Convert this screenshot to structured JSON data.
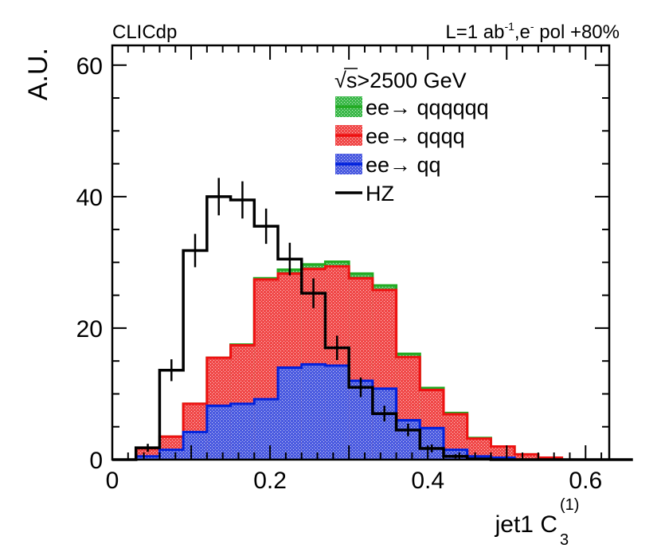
{
  "header": {
    "left": "CLICdp",
    "right_prefix": "L=1 ab",
    "right_sup": "-1",
    "right_mid": ",e",
    "right_sup2": "-",
    "right_suffix": " pol +80%"
  },
  "legend": {
    "title_root": "√",
    "title_text": "s>2500 GeV",
    "placement": "top-right"
  },
  "chart_data": {
    "type": "histogram",
    "stacked": true,
    "xlabel_main": "jet1 C",
    "xlabel_sub": "3",
    "xlabel_sup": "(1)",
    "ylabel": "A.U.",
    "xlim": [
      0,
      0.63
    ],
    "ylim": [
      0,
      63
    ],
    "x_ticks": [
      "0",
      "0.2",
      "0.4",
      "0.6"
    ],
    "x_tick_values": [
      0,
      0.2,
      0.4,
      0.6
    ],
    "y_ticks": [
      "0",
      "20",
      "40",
      "60"
    ],
    "y_tick_values": [
      0,
      20,
      40,
      60
    ],
    "bin_edges": [
      0,
      0.03,
      0.06,
      0.09,
      0.12,
      0.15,
      0.18,
      0.21,
      0.24,
      0.27,
      0.3,
      0.33,
      0.36,
      0.39,
      0.42,
      0.45,
      0.48,
      0.51,
      0.54,
      0.57,
      0.6,
      0.63
    ],
    "series": [
      {
        "name": "ee→ qq",
        "fill": "#3333cc",
        "line": "#0022dd",
        "values": [
          0,
          0.5,
          1.5,
          4.2,
          8.2,
          8.5,
          9.2,
          14,
          14.5,
          14.3,
          12,
          10.8,
          6,
          4.8,
          1.5,
          0.5,
          0.3,
          0,
          0,
          0,
          0
        ]
      },
      {
        "name": "ee→ qqqq",
        "fill": "#ee3333",
        "line": "#ee1111",
        "values": [
          0,
          1.2,
          2,
          4.3,
          7.3,
          8.9,
          18.2,
          14.3,
          14.5,
          15.1,
          15.6,
          15,
          9.6,
          5.8,
          5.4,
          2.7,
          1.7,
          0.8,
          0.3,
          0,
          0
        ]
      },
      {
        "name": "ee→ qqqqqq",
        "fill": "#33aa33",
        "line": "#22aa22",
        "values": [
          0,
          0,
          0,
          0,
          0,
          0.1,
          0.2,
          0.6,
          0.7,
          0.7,
          0.7,
          0.7,
          0.5,
          0.3,
          0.2,
          0.1,
          0,
          0,
          0,
          0,
          0
        ]
      }
    ],
    "overlay": {
      "name": "HZ",
      "line": "#000000",
      "values": [
        1.8,
        13.6,
        31.8,
        40,
        39.5,
        35.5,
        30.5,
        25.3,
        17,
        11,
        7,
        4.5,
        1.7,
        0.5,
        0.1,
        0,
        0,
        0,
        0,
        0,
        0
      ],
      "bin_edges": [
        0.03,
        0.06,
        0.09,
        0.12,
        0.15,
        0.18,
        0.21,
        0.24,
        0.27,
        0.3,
        0.33,
        0.36,
        0.39,
        0.42,
        0.45,
        0.48,
        0.51,
        0.54,
        0.57,
        0.6,
        0.63,
        0.66
      ],
      "error_bars": true
    },
    "legend_entries": [
      {
        "label": "ee→ qqqqqq",
        "kind": "fill",
        "fill": "#33aa33",
        "line": "#22aa22"
      },
      {
        "label": "ee→ qqqq",
        "kind": "fill",
        "fill": "#ee3333",
        "line": "#ee1111"
      },
      {
        "label": "ee→ qq",
        "kind": "fill",
        "fill": "#3333cc",
        "line": "#0022dd"
      },
      {
        "label": "HZ",
        "kind": "line",
        "line": "#000000"
      }
    ]
  }
}
